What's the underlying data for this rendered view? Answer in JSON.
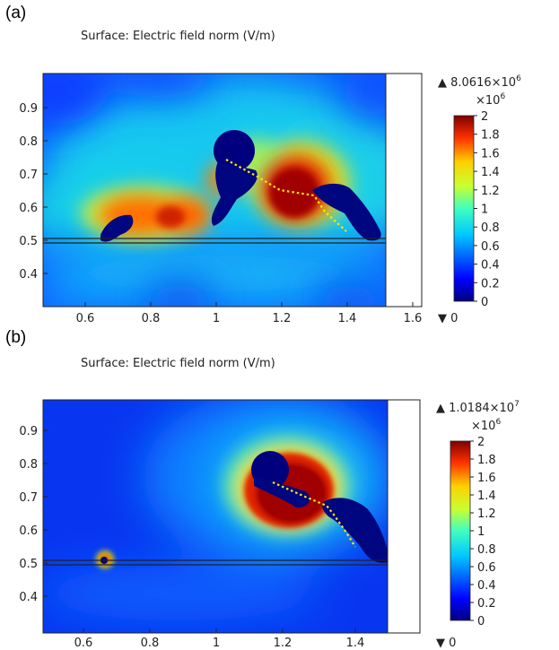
{
  "chart_data": [
    {
      "type": "heatmap",
      "panel_label": "(a)",
      "title": "Surface: Electric field norm (V/m)",
      "xticks": [
        "0.6",
        "0.8",
        "1",
        "1.2",
        "1.4",
        "1.6"
      ],
      "yticks": [
        "0.4",
        "0.5",
        "0.6",
        "0.7",
        "0.8",
        "0.9"
      ],
      "xlim": [
        0.48,
        1.65
      ],
      "ylim": [
        0.32,
        0.99
      ],
      "colorbar": {
        "max_label": "▲ 8.0616×10",
        "max_exp": "6",
        "scale_label": "×10",
        "scale_exp": "6",
        "min_label": "▼ 0",
        "ticks": [
          "2",
          "1.8",
          "1.6",
          "1.4",
          "1.2",
          "1",
          "0.8",
          "0.6",
          "0.4",
          "0.2",
          "0"
        ],
        "range": [
          0,
          2
        ]
      },
      "colors": {
        "low": "#00007f",
        "mid": "#00ffff",
        "high": "#7f0000"
      }
    },
    {
      "type": "heatmap",
      "panel_label": "(b)",
      "title": "Surface: Electric field norm (V/m)",
      "xticks": [
        "0.6",
        "0.8",
        "1",
        "1.2",
        "1.4"
      ],
      "yticks": [
        "0.4",
        "0.5",
        "0.6",
        "0.7",
        "0.8",
        "0.9"
      ],
      "xlim": [
        0.48,
        1.52
      ],
      "ylim": [
        0.32,
        0.99
      ],
      "colorbar": {
        "max_label": "▲ 1.0184×10",
        "max_exp": "7",
        "scale_label": "×10",
        "scale_exp": "6",
        "min_label": "▼ 0",
        "ticks": [
          "2",
          "1.8",
          "1.6",
          "1.4",
          "1.2",
          "1",
          "0.8",
          "0.6",
          "0.4",
          "0.2",
          "0"
        ],
        "range": [
          0,
          2
        ]
      },
      "colors": {
        "low": "#00007f",
        "mid": "#00ffff",
        "high": "#7f0000"
      }
    }
  ]
}
